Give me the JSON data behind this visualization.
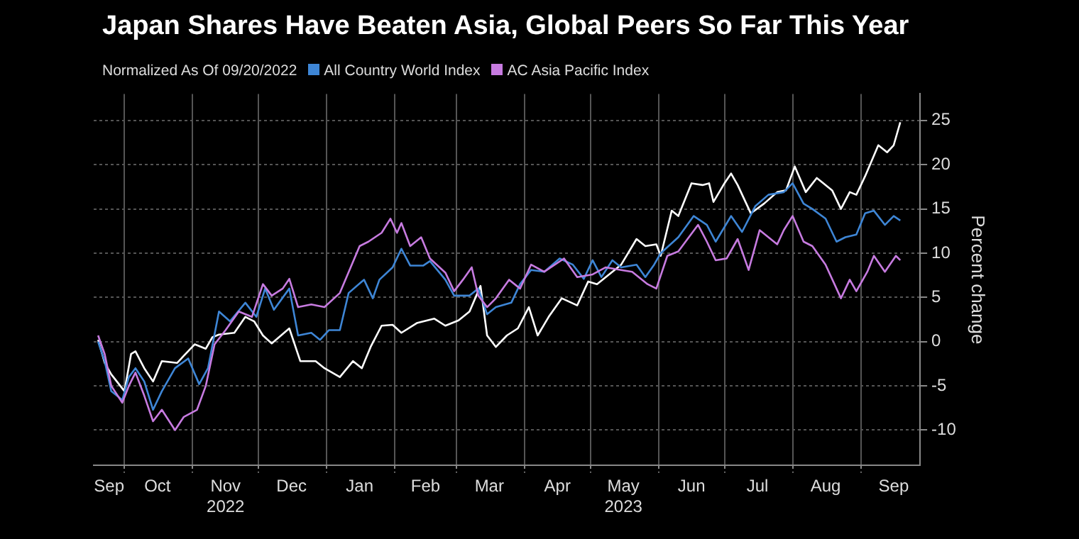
{
  "chart_data": {
    "type": "line",
    "title": "Japan Shares Have Beaten Asia, Global Peers So Far This Year",
    "subtitle": "Normalized As Of 09/20/2022",
    "ylabel": "Percent change",
    "xlim": [
      "2022-09-17",
      "2023-09-28"
    ],
    "xticks": [
      {
        "value": "2022-09-24",
        "label": "Sep"
      },
      {
        "value": "2022-10-01",
        "label": null
      },
      {
        "value": "2022-10-16",
        "label": "Oct"
      },
      {
        "value": "2022-11-01",
        "label": null
      },
      {
        "value": "2022-11-16",
        "label": "Nov\n2022"
      },
      {
        "value": "2022-12-01",
        "label": null
      },
      {
        "value": "2022-12-16",
        "label": "Dec"
      },
      {
        "value": "2023-01-01",
        "label": null
      },
      {
        "value": "2023-01-16",
        "label": "Jan"
      },
      {
        "value": "2023-02-01",
        "label": null
      },
      {
        "value": "2023-02-15",
        "label": "Feb"
      },
      {
        "value": "2023-03-01",
        "label": null
      },
      {
        "value": "2023-03-16",
        "label": "Mar"
      },
      {
        "value": "2023-04-01",
        "label": null
      },
      {
        "value": "2023-04-16",
        "label": "Apr"
      },
      {
        "value": "2023-05-01",
        "label": null
      },
      {
        "value": "2023-05-16",
        "label": "May\n2023"
      },
      {
        "value": "2023-06-01",
        "label": null
      },
      {
        "value": "2023-06-16",
        "label": "Jun"
      },
      {
        "value": "2023-07-01",
        "label": null
      },
      {
        "value": "2023-07-16",
        "label": "Jul"
      },
      {
        "value": "2023-08-01",
        "label": null
      },
      {
        "value": "2023-08-16",
        "label": "Aug"
      },
      {
        "value": "2023-09-01",
        "label": null
      },
      {
        "value": "2023-09-16",
        "label": "Sep"
      }
    ],
    "ylim": [
      -14,
      28
    ],
    "yticks": [
      -10,
      -5,
      0,
      5,
      10,
      15,
      20,
      25
    ],
    "grid": true,
    "legend": "top left",
    "marker": "none",
    "line_style": "solid",
    "series": [
      {
        "color": "#ffffff",
        "x": [
          "2022-09-19",
          "2022-09-22",
          "2022-09-25",
          "2022-10-01",
          "2022-10-04",
          "2022-10-06",
          "2022-10-10",
          "2022-10-14",
          "2022-10-18",
          "2022-10-25",
          "2022-10-28",
          "2022-11-02",
          "2022-11-07",
          "2022-11-10",
          "2022-11-13",
          "2022-11-20",
          "2022-11-25",
          "2022-11-29",
          "2022-12-03",
          "2022-12-07",
          "2022-12-15",
          "2022-12-20",
          "2022-12-27",
          "2022-12-31",
          "2023-01-07",
          "2023-01-13",
          "2023-01-17",
          "2023-01-21",
          "2023-01-26",
          "2023-01-31",
          "2023-02-04",
          "2023-02-11",
          "2023-02-19",
          "2023-02-24",
          "2023-03-02",
          "2023-03-07",
          "2023-03-12",
          "2023-03-15",
          "2023-03-19",
          "2023-03-24",
          "2023-03-29",
          "2023-04-03",
          "2023-04-07",
          "2023-04-12",
          "2023-04-18",
          "2023-04-25",
          "2023-04-30",
          "2023-05-04",
          "2023-05-08",
          "2023-05-15",
          "2023-05-22",
          "2023-05-26",
          "2023-05-31",
          "2023-06-02",
          "2023-06-07",
          "2023-06-10",
          "2023-06-16",
          "2023-06-21",
          "2023-06-24",
          "2023-06-26",
          "2023-07-01",
          "2023-07-04",
          "2023-07-07",
          "2023-07-13",
          "2023-07-19",
          "2023-07-25",
          "2023-07-29",
          "2023-08-02",
          "2023-08-07",
          "2023-08-12",
          "2023-08-19",
          "2023-08-23",
          "2023-08-27",
          "2023-08-30",
          "2023-09-03",
          "2023-09-09",
          "2023-09-13",
          "2023-09-16",
          "2023-09-19"
        ],
        "values": [
          0.2,
          -2.4,
          -3.7,
          -5.6,
          -1.4,
          -1.1,
          -3,
          -4.5,
          -2.2,
          -2.4,
          -1.6,
          -0.3,
          -0.8,
          0.5,
          0.8,
          1,
          2.8,
          2.3,
          0.7,
          -0.2,
          1.5,
          -2.2,
          -2.2,
          -3,
          -4,
          -2.2,
          -3,
          -0.6,
          1.8,
          1.9,
          1,
          2.1,
          2.6,
          1.8,
          2.4,
          3.4,
          6.3,
          0.7,
          -0.6,
          0.7,
          1.5,
          3.9,
          0.7,
          2.8,
          4.9,
          4.1,
          6.8,
          6.5,
          7.3,
          8.7,
          11.6,
          10.8,
          11,
          9.7,
          14.8,
          14.2,
          17.9,
          17.7,
          17.9,
          15.8,
          17.9,
          19,
          17.7,
          14.5,
          15.6,
          16.9,
          17.1,
          19.8,
          16.9,
          18.5,
          17.1,
          15,
          16.9,
          16.6,
          18.7,
          22.2,
          21.4,
          22.2,
          24.8
        ]
      },
      {
        "name": "All Country World Index",
        "color": "#3e86d6",
        "x": [
          "2022-09-19",
          "2022-09-22",
          "2022-09-25",
          "2022-09-30",
          "2022-10-03",
          "2022-10-06",
          "2022-10-10",
          "2022-10-14",
          "2022-10-18",
          "2022-10-24",
          "2022-10-30",
          "2022-11-04",
          "2022-11-08",
          "2022-11-13",
          "2022-11-18",
          "2022-11-25",
          "2022-11-30",
          "2022-12-04",
          "2022-12-08",
          "2022-12-15",
          "2022-12-19",
          "2022-12-25",
          "2022-12-29",
          "2023-01-02",
          "2023-01-07",
          "2023-01-11",
          "2023-01-18",
          "2023-01-22",
          "2023-01-25",
          "2023-01-31",
          "2023-02-04",
          "2023-02-08",
          "2023-02-14",
          "2023-02-17",
          "2023-02-24",
          "2023-02-28",
          "2023-03-07",
          "2023-03-11",
          "2023-03-15",
          "2023-03-19",
          "2023-03-26",
          "2023-03-30",
          "2023-04-04",
          "2023-04-10",
          "2023-04-17",
          "2023-04-23",
          "2023-04-28",
          "2023-05-02",
          "2023-05-06",
          "2023-05-11",
          "2023-05-15",
          "2023-05-22",
          "2023-05-26",
          "2023-05-30",
          "2023-06-02",
          "2023-06-10",
          "2023-06-17",
          "2023-06-23",
          "2023-06-27",
          "2023-07-04",
          "2023-07-09",
          "2023-07-15",
          "2023-07-21",
          "2023-07-28",
          "2023-08-01",
          "2023-08-06",
          "2023-08-10",
          "2023-08-16",
          "2023-08-21",
          "2023-08-25",
          "2023-08-30",
          "2023-09-03",
          "2023-09-07",
          "2023-09-12",
          "2023-09-16",
          "2023-09-19"
        ],
        "values": [
          0,
          -2.2,
          -5.6,
          -6.6,
          -4,
          -3,
          -4.5,
          -7.7,
          -5.6,
          -3,
          -1.9,
          -4.8,
          -3,
          3.4,
          2.3,
          4.4,
          2.8,
          6,
          3.6,
          6,
          0.7,
          1,
          0.2,
          1.3,
          1.3,
          5.5,
          7,
          4.9,
          7,
          8.4,
          10.5,
          8.6,
          8.6,
          9.1,
          7,
          5.2,
          5.2,
          6,
          3.1,
          3.9,
          4.4,
          6.5,
          8.1,
          7.9,
          9.4,
          8.7,
          7.1,
          9.2,
          7.3,
          9.2,
          8.4,
          8.7,
          7.3,
          8.7,
          10,
          11.8,
          14.2,
          13.2,
          11.3,
          14.2,
          12.4,
          15.3,
          16.6,
          16.9,
          17.9,
          15.6,
          15,
          13.9,
          11.3,
          11.8,
          12.1,
          14.5,
          14.8,
          13.2,
          14.2,
          13.7
        ]
      },
      {
        "name": "AC Asia Pacific Index",
        "color": "#c77be0",
        "x": [
          "2022-09-19",
          "2022-09-22",
          "2022-09-25",
          "2022-09-30",
          "2022-10-03",
          "2022-10-06",
          "2022-10-10",
          "2022-10-14",
          "2022-10-18",
          "2022-10-24",
          "2022-10-28",
          "2022-11-03",
          "2022-11-07",
          "2022-11-11",
          "2022-11-16",
          "2022-11-22",
          "2022-11-28",
          "2022-12-03",
          "2022-12-07",
          "2022-12-12",
          "2022-12-15",
          "2022-12-19",
          "2022-12-25",
          "2022-12-31",
          "2023-01-07",
          "2023-01-16",
          "2023-01-20",
          "2023-01-26",
          "2023-01-30",
          "2023-02-02",
          "2023-02-04",
          "2023-02-08",
          "2023-02-13",
          "2023-02-17",
          "2023-02-24",
          "2023-02-28",
          "2023-03-04",
          "2023-03-08",
          "2023-03-11",
          "2023-03-15",
          "2023-03-19",
          "2023-03-25",
          "2023-03-30",
          "2023-04-04",
          "2023-04-10",
          "2023-04-19",
          "2023-04-25",
          "2023-05-02",
          "2023-05-08",
          "2023-05-15",
          "2023-05-20",
          "2023-05-27",
          "2023-05-31",
          "2023-06-05",
          "2023-06-10",
          "2023-06-19",
          "2023-06-23",
          "2023-06-27",
          "2023-07-02",
          "2023-07-07",
          "2023-07-12",
          "2023-07-17",
          "2023-07-25",
          "2023-07-28",
          "2023-08-01",
          "2023-08-06",
          "2023-08-10",
          "2023-08-16",
          "2023-08-23",
          "2023-08-27",
          "2023-08-30",
          "2023-09-04",
          "2023-09-07",
          "2023-09-12",
          "2023-09-17",
          "2023-09-19"
        ],
        "values": [
          0.7,
          -1.4,
          -5,
          -6.9,
          -5,
          -3.5,
          -6.1,
          -9,
          -7.7,
          -10,
          -8.5,
          -7.7,
          -5,
          -0.3,
          1.3,
          3.4,
          2.8,
          6.5,
          5.2,
          6,
          7.1,
          3.9,
          4.2,
          3.9,
          5.5,
          10.8,
          11.3,
          12.3,
          13.9,
          12.3,
          13.4,
          10.8,
          11.8,
          9.4,
          7.8,
          5.7,
          7,
          8.4,
          5.2,
          3.9,
          4.9,
          7,
          6,
          8.7,
          7.9,
          9.4,
          7.3,
          7.6,
          8.4,
          8.1,
          7.9,
          6.5,
          6,
          9.7,
          10.2,
          13.2,
          11.3,
          9.2,
          9.4,
          11.6,
          8.1,
          12.6,
          11,
          12.6,
          14.2,
          11.3,
          10.8,
          8.7,
          4.9,
          7,
          5.7,
          7.9,
          9.7,
          7.9,
          9.7,
          9.2
        ]
      }
    ]
  }
}
